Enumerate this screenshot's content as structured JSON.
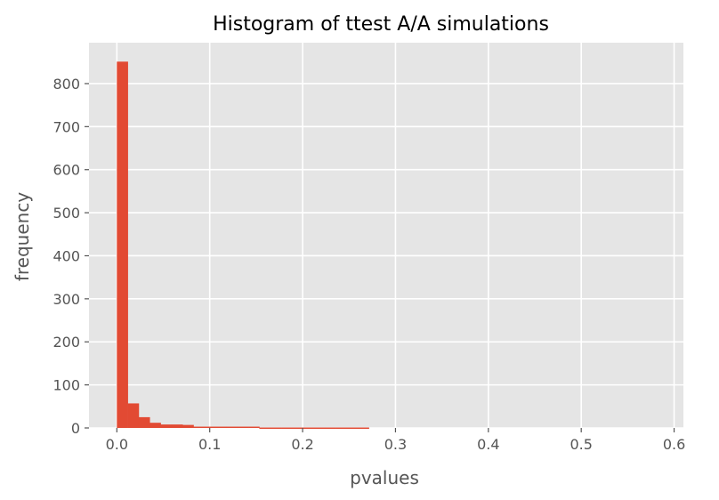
{
  "chart_data": {
    "type": "bar",
    "title": "Histogram of ttest A/A simulations",
    "xlabel": "pvalues",
    "ylabel": "frequency",
    "xlim": [
      -0.03,
      0.61
    ],
    "ylim": [
      0,
      895
    ],
    "grid": true,
    "legend": null,
    "xticks": [
      0.0,
      0.1,
      0.2,
      0.3,
      0.4,
      0.5,
      0.6
    ],
    "xtick_labels": [
      "0.0",
      "0.1",
      "0.2",
      "0.3",
      "0.4",
      "0.5",
      "0.6"
    ],
    "yticks": [
      0,
      100,
      200,
      300,
      400,
      500,
      600,
      700,
      800
    ],
    "ytick_labels": [
      "0",
      "100",
      "200",
      "300",
      "400",
      "500",
      "600",
      "700",
      "800"
    ],
    "bin_width": 0.0118,
    "bins": [
      {
        "x0": 0.0,
        "x1": 0.0118,
        "count": 851
      },
      {
        "x0": 0.0118,
        "x1": 0.0236,
        "count": 57
      },
      {
        "x0": 0.0236,
        "x1": 0.0354,
        "count": 25
      },
      {
        "x0": 0.0354,
        "x1": 0.0472,
        "count": 12
      },
      {
        "x0": 0.0472,
        "x1": 0.059,
        "count": 8
      },
      {
        "x0": 0.059,
        "x1": 0.0708,
        "count": 8
      },
      {
        "x0": 0.0708,
        "x1": 0.0826,
        "count": 7
      },
      {
        "x0": 0.0826,
        "x1": 0.0944,
        "count": 3
      },
      {
        "x0": 0.0944,
        "x1": 0.1062,
        "count": 3
      },
      {
        "x0": 0.1062,
        "x1": 0.118,
        "count": 3
      },
      {
        "x0": 0.118,
        "x1": 0.1298,
        "count": 3
      },
      {
        "x0": 0.1298,
        "x1": 0.1416,
        "count": 3
      },
      {
        "x0": 0.1416,
        "x1": 0.1534,
        "count": 3
      },
      {
        "x0": 0.1534,
        "x1": 0.1652,
        "count": 1
      },
      {
        "x0": 0.1652,
        "x1": 0.177,
        "count": 1
      },
      {
        "x0": 0.177,
        "x1": 0.1888,
        "count": 1
      },
      {
        "x0": 0.1888,
        "x1": 0.2006,
        "count": 1
      },
      {
        "x0": 0.2006,
        "x1": 0.2124,
        "count": 1
      },
      {
        "x0": 0.2124,
        "x1": 0.2242,
        "count": 1
      },
      {
        "x0": 0.2242,
        "x1": 0.236,
        "count": 1
      },
      {
        "x0": 0.236,
        "x1": 0.2478,
        "count": 1
      },
      {
        "x0": 0.2478,
        "x1": 0.2596,
        "count": 1
      },
      {
        "x0": 0.2596,
        "x1": 0.2714,
        "count": 1
      },
      {
        "x0": 0.2714,
        "x1": 0.2832,
        "count": 0
      },
      {
        "x0": 0.2832,
        "x1": 0.295,
        "count": 0
      },
      {
        "x0": 0.295,
        "x1": 0.3068,
        "count": 0
      },
      {
        "x0": 0.3068,
        "x1": 0.3186,
        "count": 0
      },
      {
        "x0": 0.3186,
        "x1": 0.3304,
        "count": 0
      },
      {
        "x0": 0.3304,
        "x1": 0.3422,
        "count": 0
      },
      {
        "x0": 0.3422,
        "x1": 0.354,
        "count": 0
      },
      {
        "x0": 0.354,
        "x1": 0.3658,
        "count": 0
      },
      {
        "x0": 0.3658,
        "x1": 0.3776,
        "count": 0
      },
      {
        "x0": 0.3776,
        "x1": 0.3894,
        "count": 0
      },
      {
        "x0": 0.3894,
        "x1": 0.4012,
        "count": 0
      },
      {
        "x0": 0.4012,
        "x1": 0.413,
        "count": 0
      },
      {
        "x0": 0.413,
        "x1": 0.4248,
        "count": 0
      },
      {
        "x0": 0.4248,
        "x1": 0.4366,
        "count": 0
      },
      {
        "x0": 0.4366,
        "x1": 0.4484,
        "count": 0
      },
      {
        "x0": 0.4484,
        "x1": 0.4602,
        "count": 0
      },
      {
        "x0": 0.4602,
        "x1": 0.472,
        "count": 0
      },
      {
        "x0": 0.472,
        "x1": 0.4838,
        "count": 0
      },
      {
        "x0": 0.4838,
        "x1": 0.4956,
        "count": 0
      },
      {
        "x0": 0.4956,
        "x1": 0.5074,
        "count": 0
      },
      {
        "x0": 0.5074,
        "x1": 0.5192,
        "count": 0
      },
      {
        "x0": 0.5192,
        "x1": 0.531,
        "count": 0
      },
      {
        "x0": 0.531,
        "x1": 0.5428,
        "count": 0
      },
      {
        "x0": 0.5428,
        "x1": 0.5546,
        "count": 0
      },
      {
        "x0": 0.5546,
        "x1": 0.5664,
        "count": 0
      },
      {
        "x0": 0.5664,
        "x1": 0.5782,
        "count": 0
      },
      {
        "x0": 0.5782,
        "x1": 0.59,
        "count": 0
      }
    ],
    "colors": {
      "bar": "#E24A33",
      "panel_background": "#E5E5E5",
      "grid": "#FFFFFF",
      "tick_text": "#555555",
      "title_text": "#000000"
    }
  }
}
